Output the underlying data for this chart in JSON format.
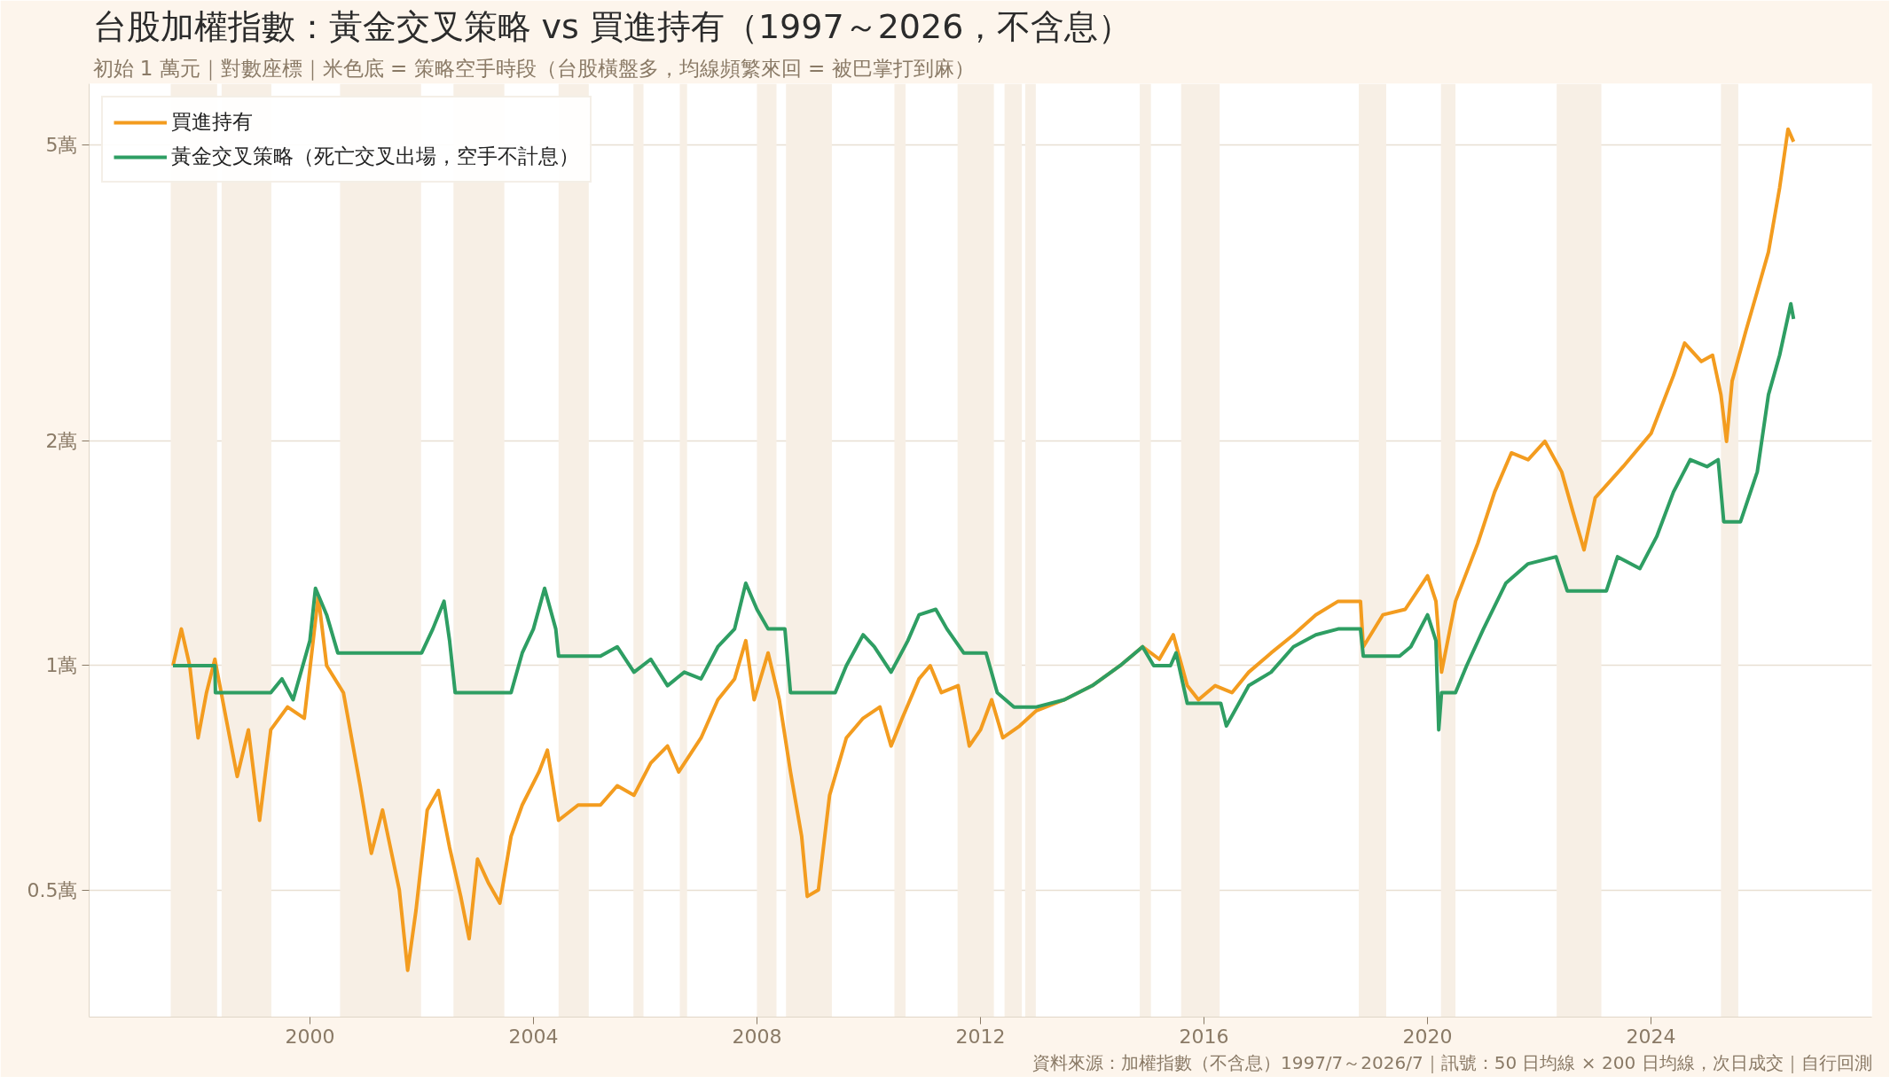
{
  "chart_data": {
    "type": "line",
    "title": "台股加權指數：黃金交叉策略 vs 買進持有（1997～2026，不含息）",
    "subtitle": "初始 1 萬元｜對數座標｜米色底 = 策略空手時段（台股橫盤多，均線頻繁來回 = 被巴掌打到麻）",
    "annotations": [
      "資料來源：加權指數（不含息）1997/7～2026/7｜訊號：50 日均線 × 200 日均線，次日成交｜自行回測"
    ],
    "log": "y",
    "grid": "y",
    "legend": "top left",
    "line_style": "solid",
    "xlim": [
      1996.05,
      2027.95
    ],
    "xticks": [
      2000,
      2004,
      2008,
      2012,
      2016,
      2020,
      2024
    ],
    "ylim": [
      0.3375,
      6.04
    ],
    "yticks": [
      {
        "value": 0.5,
        "label": "0.5萬"
      },
      {
        "value": 1,
        "label": "1萬"
      },
      {
        "value": 2,
        "label": "2萬"
      },
      {
        "value": 5,
        "label": "5萬"
      }
    ],
    "bands": [
      {
        "axis": "x",
        "from": 1997.51,
        "to": 1998.34,
        "color": "#f7efe5"
      },
      {
        "axis": "x",
        "from": 1998.42,
        "to": 1999.31,
        "color": "#f7efe5"
      },
      {
        "axis": "x",
        "from": 2000.54,
        "to": 2001.99,
        "color": "#f7efe5"
      },
      {
        "axis": "x",
        "from": 2002.57,
        "to": 2003.48,
        "color": "#f7efe5"
      },
      {
        "axis": "x",
        "from": 2004.45,
        "to": 2004.99,
        "color": "#f7efe5"
      },
      {
        "axis": "x",
        "from": 2005.79,
        "to": 2005.97,
        "color": "#f7efe5"
      },
      {
        "axis": "x",
        "from": 2006.62,
        "to": 2006.75,
        "color": "#f7efe5"
      },
      {
        "axis": "x",
        "from": 2008.0,
        "to": 2008.35,
        "color": "#f7efe5"
      },
      {
        "axis": "x",
        "from": 2008.52,
        "to": 2009.34,
        "color": "#f7efe5"
      },
      {
        "axis": "x",
        "from": 2010.46,
        "to": 2010.66,
        "color": "#f7efe5"
      },
      {
        "axis": "x",
        "from": 2011.59,
        "to": 2012.24,
        "color": "#f7efe5"
      },
      {
        "axis": "x",
        "from": 2012.43,
        "to": 2012.74,
        "color": "#f7efe5"
      },
      {
        "axis": "x",
        "from": 2012.8,
        "to": 2012.99,
        "color": "#f7efe5"
      },
      {
        "axis": "x",
        "from": 2014.85,
        "to": 2015.05,
        "color": "#f7efe5"
      },
      {
        "axis": "x",
        "from": 2015.59,
        "to": 2016.28,
        "color": "#f7efe5"
      },
      {
        "axis": "x",
        "from": 2018.77,
        "to": 2019.26,
        "color": "#f7efe5"
      },
      {
        "axis": "x",
        "from": 2020.24,
        "to": 2020.5,
        "color": "#f7efe5"
      },
      {
        "axis": "x",
        "from": 2022.31,
        "to": 2023.11,
        "color": "#f7efe5"
      },
      {
        "axis": "x",
        "from": 2025.25,
        "to": 2025.56,
        "color": "#f7efe5"
      }
    ],
    "series": [
      {
        "name": "買進持有",
        "color": "#f39c1f",
        "x": [
          1997.55,
          1997.7,
          1997.85,
          1998.0,
          1998.15,
          1998.3,
          1998.5,
          1998.7,
          1998.9,
          1999.1,
          1999.3,
          1999.6,
          1999.9,
          2000.15,
          2000.3,
          2000.6,
          2000.9,
          2001.1,
          2001.3,
          2001.6,
          2001.75,
          2001.9,
          2002.1,
          2002.3,
          2002.5,
          2002.7,
          2002.85,
          2003.0,
          2003.2,
          2003.4,
          2003.6,
          2003.8,
          2004.1,
          2004.25,
          2004.45,
          2004.8,
          2005.2,
          2005.5,
          2005.8,
          2006.1,
          2006.4,
          2006.6,
          2007.0,
          2007.3,
          2007.6,
          2007.8,
          2007.95,
          2008.2,
          2008.4,
          2008.6,
          2008.8,
          2008.9,
          2009.1,
          2009.3,
          2009.6,
          2009.9,
          2010.2,
          2010.4,
          2010.6,
          2010.9,
          2011.1,
          2011.3,
          2011.6,
          2011.8,
          2012.0,
          2012.2,
          2012.4,
          2012.7,
          2013.0,
          2013.5,
          2014.0,
          2014.5,
          2014.9,
          2015.2,
          2015.45,
          2015.7,
          2015.9,
          2016.2,
          2016.5,
          2016.8,
          2017.2,
          2017.6,
          2018.0,
          2018.4,
          2018.8,
          2018.85,
          2019.2,
          2019.6,
          2020.0,
          2020.15,
          2020.25,
          2020.5,
          2020.9,
          2021.2,
          2021.5,
          2021.8,
          2022.1,
          2022.4,
          2022.6,
          2022.8,
          2023.0,
          2023.5,
          2024.0,
          2024.4,
          2024.6,
          2024.9,
          2025.1,
          2025.25,
          2025.35,
          2025.45,
          2025.7,
          2025.9,
          2026.1,
          2026.3,
          2026.45,
          2026.55
        ],
        "values": [
          1.0,
          1.12,
          1.0,
          0.8,
          0.92,
          1.02,
          0.85,
          0.71,
          0.82,
          0.62,
          0.82,
          0.88,
          0.85,
          1.24,
          1.0,
          0.92,
          0.69,
          0.56,
          0.64,
          0.5,
          0.39,
          0.47,
          0.64,
          0.68,
          0.57,
          0.49,
          0.43,
          0.55,
          0.51,
          0.48,
          0.59,
          0.65,
          0.72,
          0.77,
          0.62,
          0.65,
          0.65,
          0.69,
          0.67,
          0.74,
          0.78,
          0.72,
          0.8,
          0.9,
          0.96,
          1.08,
          0.9,
          1.04,
          0.9,
          0.72,
          0.59,
          0.49,
          0.5,
          0.67,
          0.8,
          0.85,
          0.88,
          0.78,
          0.85,
          0.96,
          1.0,
          0.92,
          0.94,
          0.78,
          0.82,
          0.9,
          0.8,
          0.83,
          0.87,
          0.9,
          0.94,
          1.0,
          1.06,
          1.02,
          1.1,
          0.94,
          0.9,
          0.94,
          0.92,
          0.98,
          1.04,
          1.1,
          1.17,
          1.22,
          1.22,
          1.06,
          1.17,
          1.19,
          1.32,
          1.22,
          0.98,
          1.22,
          1.46,
          1.71,
          1.93,
          1.89,
          2.0,
          1.82,
          1.61,
          1.43,
          1.68,
          1.85,
          2.05,
          2.45,
          2.71,
          2.56,
          2.61,
          2.31,
          2.0,
          2.41,
          2.82,
          3.18,
          3.59,
          4.38,
          5.25,
          5.05
        ]
      },
      {
        "name": "黃金交叉策略（死亡交叉出場，空手不計息）",
        "color": "#2e9e63",
        "x": [
          1997.55,
          1998.3,
          1998.31,
          1999.3,
          1999.5,
          1999.7,
          2000.0,
          2000.1,
          2000.3,
          2000.5,
          2002.0,
          2002.2,
          2002.4,
          2002.5,
          2002.6,
          2003.6,
          2003.8,
          2004.0,
          2004.2,
          2004.4,
          2004.45,
          2005.2,
          2005.5,
          2005.8,
          2006.1,
          2006.4,
          2006.7,
          2007.0,
          2007.3,
          2007.6,
          2007.8,
          2008.0,
          2008.2,
          2008.5,
          2008.6,
          2009.4,
          2009.6,
          2009.9,
          2010.1,
          2010.4,
          2010.7,
          2010.9,
          2011.2,
          2011.4,
          2011.7,
          2012.1,
          2012.3,
          2012.6,
          2013.0,
          2013.5,
          2014.0,
          2014.5,
          2014.9,
          2015.1,
          2015.4,
          2015.5,
          2015.7,
          2016.3,
          2016.4,
          2016.8,
          2017.2,
          2017.6,
          2018.0,
          2018.4,
          2018.8,
          2018.85,
          2019.5,
          2019.7,
          2020.0,
          2020.15,
          2020.2,
          2020.25,
          2020.5,
          2020.7,
          2021.0,
          2021.4,
          2021.8,
          2022.3,
          2022.5,
          2023.2,
          2023.4,
          2023.8,
          2024.1,
          2024.4,
          2024.7,
          2025.0,
          2025.2,
          2025.3,
          2025.6,
          2025.9,
          2026.1,
          2026.3,
          2026.5,
          2026.55
        ],
        "values": [
          1.0,
          1.0,
          0.92,
          0.92,
          0.96,
          0.9,
          1.08,
          1.27,
          1.17,
          1.04,
          1.04,
          1.12,
          1.22,
          1.08,
          0.92,
          0.92,
          1.04,
          1.12,
          1.27,
          1.12,
          1.03,
          1.03,
          1.06,
          0.98,
          1.02,
          0.94,
          0.98,
          0.96,
          1.06,
          1.12,
          1.29,
          1.19,
          1.12,
          1.12,
          0.92,
          0.92,
          1.0,
          1.1,
          1.06,
          0.98,
          1.08,
          1.17,
          1.19,
          1.12,
          1.04,
          1.04,
          0.92,
          0.88,
          0.88,
          0.9,
          0.94,
          1.0,
          1.06,
          1.0,
          1.0,
          1.04,
          0.89,
          0.89,
          0.83,
          0.94,
          0.98,
          1.06,
          1.1,
          1.12,
          1.12,
          1.03,
          1.03,
          1.06,
          1.17,
          1.08,
          0.82,
          0.92,
          0.92,
          1.0,
          1.12,
          1.29,
          1.37,
          1.4,
          1.26,
          1.26,
          1.4,
          1.35,
          1.49,
          1.71,
          1.89,
          1.85,
          1.89,
          1.56,
          1.56,
          1.82,
          2.31,
          2.61,
          3.06,
          2.92
        ]
      }
    ]
  }
}
